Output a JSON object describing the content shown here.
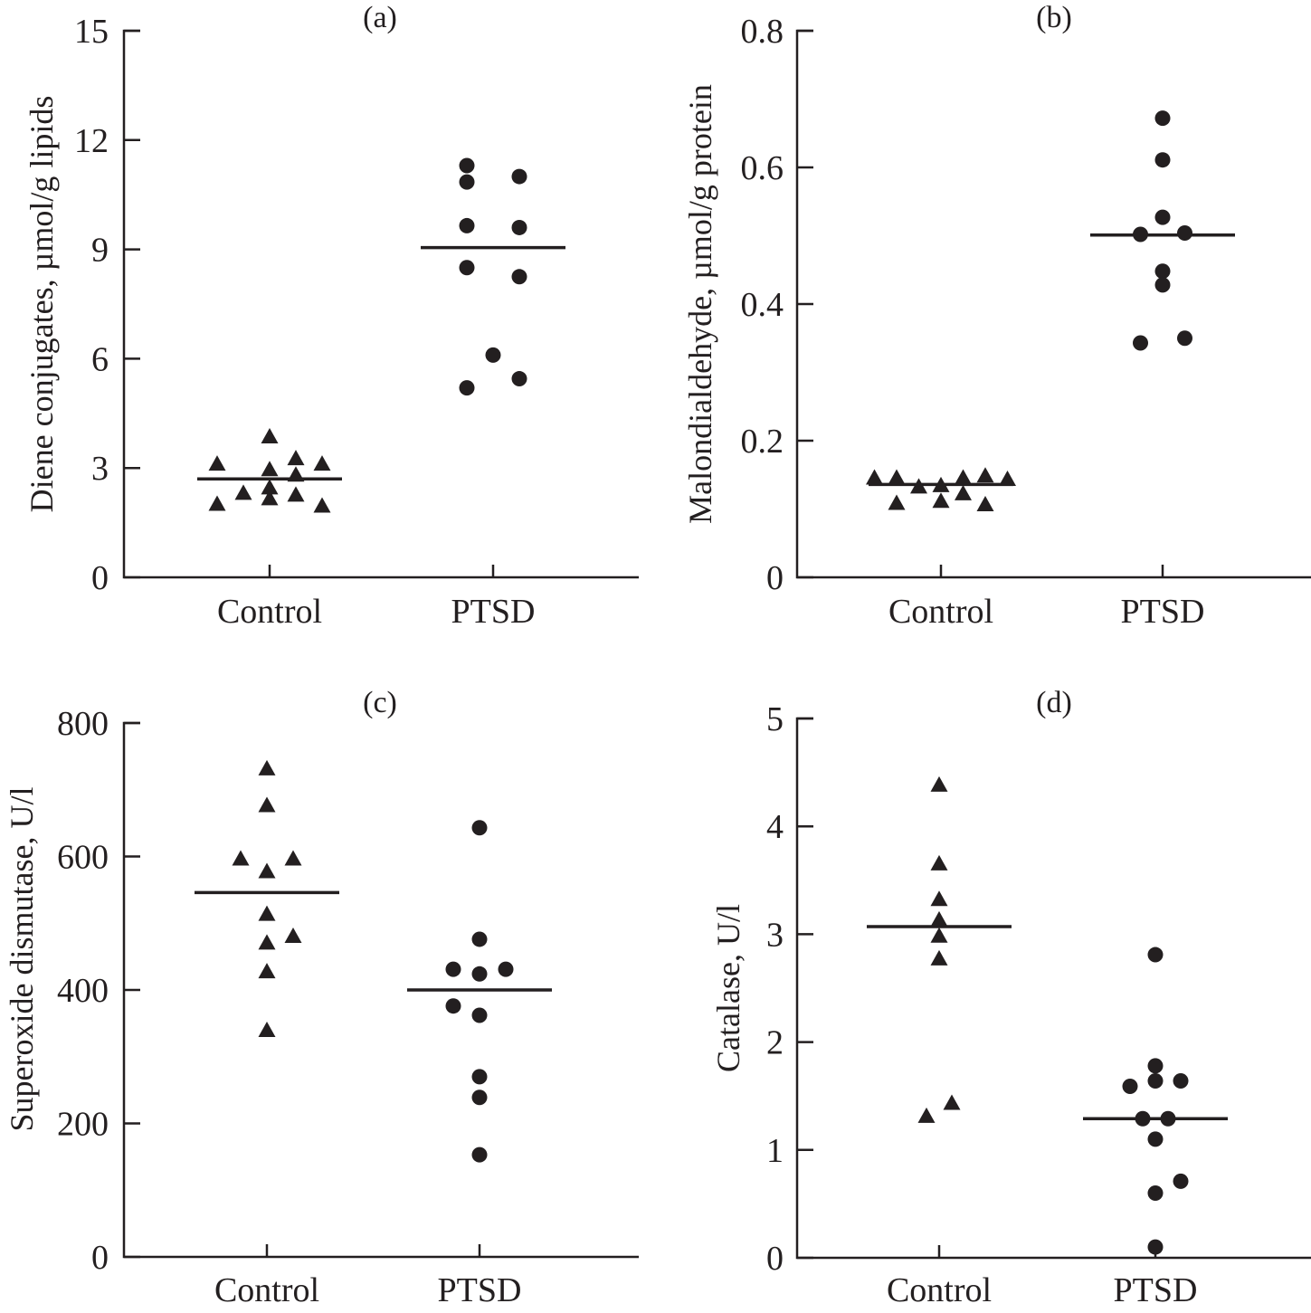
{
  "chart_data": [
    {
      "type": "scatter",
      "panel_label": "(a)",
      "title": "(a)",
      "xlabel": "",
      "ylabel": "Diene conjugates, µmol/g lipids",
      "categories": [
        "Control",
        "PTSD"
      ],
      "ylim": [
        0,
        15
      ],
      "yticks": [
        0,
        3,
        6,
        9,
        12,
        15
      ],
      "grid": false,
      "legend": "none",
      "series": [
        {
          "name": "Control",
          "marker": "triangle",
          "points": [
            {
              "offset": -2,
              "y": 3.1
            },
            {
              "offset": -2,
              "y": 2.0
            },
            {
              "offset": -1,
              "y": 2.3
            },
            {
              "offset": 0,
              "y": 3.85
            },
            {
              "offset": 0,
              "y": 2.95
            },
            {
              "offset": 0,
              "y": 2.45
            },
            {
              "offset": 0,
              "y": 2.15
            },
            {
              "offset": 1,
              "y": 3.25
            },
            {
              "offset": 1,
              "y": 2.8
            },
            {
              "offset": 1,
              "y": 2.25
            },
            {
              "offset": 2,
              "y": 3.1
            },
            {
              "offset": 2,
              "y": 1.95
            }
          ],
          "mean": 2.7
        },
        {
          "name": "PTSD",
          "marker": "circle",
          "points": [
            {
              "offset": -1,
              "y": 11.3
            },
            {
              "offset": -1,
              "y": 10.85
            },
            {
              "offset": -1,
              "y": 9.65
            },
            {
              "offset": -1,
              "y": 8.5
            },
            {
              "offset": -1,
              "y": 5.2
            },
            {
              "offset": 1,
              "y": 11.0
            },
            {
              "offset": 1,
              "y": 9.6
            },
            {
              "offset": 1,
              "y": 8.25
            },
            {
              "offset": 1,
              "y": 5.45
            },
            {
              "offset": 0,
              "y": 6.1
            }
          ],
          "mean": 9.05
        }
      ]
    },
    {
      "type": "scatter",
      "panel_label": "(b)",
      "title": "(b)",
      "xlabel": "",
      "ylabel": "Malondialdehyde, µmol/g protein",
      "categories": [
        "Control",
        "PTSD"
      ],
      "ylim": [
        0,
        0.8
      ],
      "yticks": [
        "0",
        "0.2",
        "0.4",
        "0.6",
        "0.8"
      ],
      "grid": false,
      "legend": "none",
      "series": [
        {
          "name": "Control",
          "marker": "triangle",
          "points": [
            {
              "offset": -3,
              "y": 0.145
            },
            {
              "offset": -2,
              "y": 0.145
            },
            {
              "offset": -2,
              "y": 0.108
            },
            {
              "offset": -1,
              "y": 0.132
            },
            {
              "offset": 0,
              "y": 0.134
            },
            {
              "offset": 0,
              "y": 0.111
            },
            {
              "offset": 1,
              "y": 0.145
            },
            {
              "offset": 1,
              "y": 0.122
            },
            {
              "offset": 2,
              "y": 0.148
            },
            {
              "offset": 2,
              "y": 0.106
            },
            {
              "offset": 3,
              "y": 0.143
            }
          ],
          "mean": 0.136
        },
        {
          "name": "PTSD",
          "marker": "circle",
          "points": [
            {
              "offset": 0,
              "y": 0.672
            },
            {
              "offset": 0,
              "y": 0.611
            },
            {
              "offset": 0,
              "y": 0.527
            },
            {
              "offset": -1,
              "y": 0.502
            },
            {
              "offset": 1,
              "y": 0.504
            },
            {
              "offset": 0,
              "y": 0.448
            },
            {
              "offset": 0,
              "y": 0.428
            },
            {
              "offset": -1,
              "y": 0.343
            },
            {
              "offset": 1,
              "y": 0.35
            }
          ],
          "mean": 0.501
        }
      ]
    },
    {
      "type": "scatter",
      "panel_label": "(c)",
      "title": "(c)",
      "xlabel": "",
      "ylabel": "Superoxide dismutase, U/l",
      "categories": [
        "Control",
        "PTSD"
      ],
      "ylim": [
        0,
        800
      ],
      "yticks": [
        0,
        200,
        400,
        600,
        800
      ],
      "grid": false,
      "legend": "none",
      "series": [
        {
          "name": "Control",
          "marker": "triangle",
          "points": [
            {
              "offset": 0,
              "y": 731
            },
            {
              "offset": 0,
              "y": 676
            },
            {
              "offset": -1,
              "y": 596
            },
            {
              "offset": 1,
              "y": 596
            },
            {
              "offset": 0,
              "y": 577
            },
            {
              "offset": 0,
              "y": 513
            },
            {
              "offset": 1,
              "y": 480
            },
            {
              "offset": 0,
              "y": 470
            },
            {
              "offset": 0,
              "y": 427
            },
            {
              "offset": 0,
              "y": 339
            }
          ],
          "mean": 546
        },
        {
          "name": "PTSD",
          "marker": "circle",
          "points": [
            {
              "offset": 0,
              "y": 643
            },
            {
              "offset": 0,
              "y": 476
            },
            {
              "offset": -1,
              "y": 431
            },
            {
              "offset": 0,
              "y": 424
            },
            {
              "offset": 1,
              "y": 431
            },
            {
              "offset": -1,
              "y": 376
            },
            {
              "offset": 0,
              "y": 362
            },
            {
              "offset": 0,
              "y": 270
            },
            {
              "offset": 0,
              "y": 239
            },
            {
              "offset": 0,
              "y": 153
            }
          ],
          "mean": 400
        }
      ]
    },
    {
      "type": "scatter",
      "panel_label": "(d)",
      "title": "(d)",
      "xlabel": "",
      "ylabel": "Catalase, U/l",
      "categories": [
        "Control",
        "PTSD"
      ],
      "ylim": [
        0,
        5
      ],
      "yticks": [
        0,
        1,
        2,
        3,
        4,
        5
      ],
      "grid": false,
      "legend": "none",
      "series": [
        {
          "name": "Control",
          "marker": "triangle",
          "points": [
            {
              "offset": 0,
              "y": 4.38
            },
            {
              "offset": 0,
              "y": 3.65
            },
            {
              "offset": 0,
              "y": 3.32
            },
            {
              "offset": 0,
              "y": 3.13
            },
            {
              "offset": 0,
              "y": 2.98
            },
            {
              "offset": 0,
              "y": 2.77
            },
            {
              "offset": 0.5,
              "y": 1.43
            },
            {
              "offset": -0.5,
              "y": 1.31
            }
          ],
          "mean": 3.07
        },
        {
          "name": "PTSD",
          "marker": "circle",
          "points": [
            {
              "offset": 0,
              "y": 2.81
            },
            {
              "offset": 0,
              "y": 1.78
            },
            {
              "offset": 0,
              "y": 1.64
            },
            {
              "offset": 1,
              "y": 1.64
            },
            {
              "offset": -1,
              "y": 1.59
            },
            {
              "offset": -0.5,
              "y": 1.29
            },
            {
              "offset": 0.5,
              "y": 1.29
            },
            {
              "offset": 0,
              "y": 1.1
            },
            {
              "offset": 1,
              "y": 0.71
            },
            {
              "offset": 0,
              "y": 0.6
            },
            {
              "offset": 0,
              "y": 0.1
            }
          ],
          "mean": 1.29
        }
      ]
    }
  ]
}
